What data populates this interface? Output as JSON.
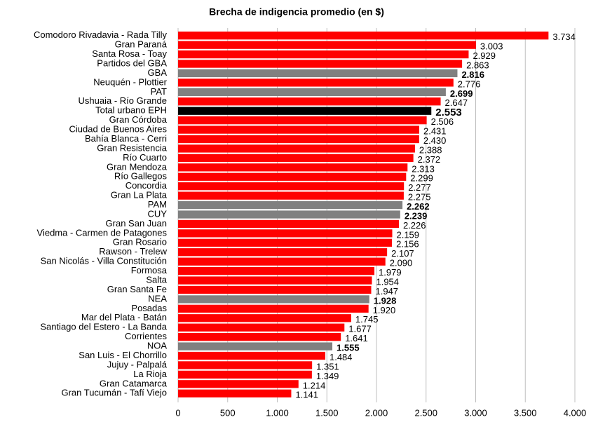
{
  "chart_data": {
    "type": "bar",
    "orientation": "horizontal",
    "title": "Brecha de indigencia promedio (en $)",
    "categories": [
      "Comodoro Rivadavia - Rada Tilly",
      "Gran Paraná",
      "Santa Rosa - Toay",
      "Partidos del GBA",
      "GBA",
      "Neuquén - Plottier",
      "PAT",
      "Ushuaia - Río Grande",
      "Total urbano EPH",
      "Gran Córdoba",
      "Ciudad de Buenos Aires",
      "Bahía Blanca - Cerri",
      "Gran Resistencia",
      "Río Cuarto",
      "Gran Mendoza",
      "Río Gallegos",
      "Concordia",
      "Gran La Plata",
      "PAM",
      "CUY",
      "Gran San Juan",
      "Viedma - Carmen de Patagones",
      "Gran Rosario",
      "Rawson - Trelew",
      "San Nicolás - Villa Constitución",
      "Formosa",
      "Salta",
      "Gran Santa Fe",
      "NEA",
      "Posadas",
      "Mar del Plata - Batán",
      "Santiago del Estero - La Banda",
      "Corrientes",
      "NOA",
      "San Luis - El Chorrillo",
      "Jujuy - Palpalá",
      "La Rioja",
      "Gran Catamarca",
      "Gran Tucumán - Tafí Viejo"
    ],
    "values": [
      3734,
      3003,
      2929,
      2863,
      2816,
      2776,
      2699,
      2647,
      2553,
      2506,
      2431,
      2430,
      2388,
      2372,
      2313,
      2299,
      2277,
      2275,
      2262,
      2239,
      2226,
      2159,
      2156,
      2107,
      2090,
      1979,
      1954,
      1947,
      1928,
      1920,
      1745,
      1677,
      1641,
      1555,
      1484,
      1351,
      1349,
      1214,
      1141
    ],
    "value_labels": [
      "3.734",
      "3.003",
      "2.929",
      "2.863",
      "2.816",
      "2.776",
      "2.699",
      "2.647",
      "2.553",
      "2.506",
      "2.431",
      "2.430",
      "2.388",
      "2.372",
      "2.313",
      "2.299",
      "2.277",
      "2.275",
      "2.262",
      "2.239",
      "2.226",
      "2.159",
      "2.156",
      "2.107",
      "2.090",
      "1.979",
      "1.954",
      "1.947",
      "1.928",
      "1.920",
      "1.745",
      "1.677",
      "1.641",
      "1.555",
      "1.484",
      "1.351",
      "1.349",
      "1.214",
      "1.141"
    ],
    "colors": [
      "#ff0000",
      "#ff0000",
      "#ff0000",
      "#ff0000",
      "#808080",
      "#ff0000",
      "#808080",
      "#ff0000",
      "#000000",
      "#ff0000",
      "#ff0000",
      "#ff0000",
      "#ff0000",
      "#ff0000",
      "#ff0000",
      "#ff0000",
      "#ff0000",
      "#ff0000",
      "#808080",
      "#808080",
      "#ff0000",
      "#ff0000",
      "#ff0000",
      "#ff0000",
      "#ff0000",
      "#ff0000",
      "#ff0000",
      "#ff0000",
      "#808080",
      "#ff0000",
      "#ff0000",
      "#ff0000",
      "#ff0000",
      "#808080",
      "#ff0000",
      "#ff0000",
      "#ff0000",
      "#ff0000",
      "#ff0000"
    ],
    "xlim": [
      0,
      4000
    ],
    "xticks": [
      0,
      500,
      {
        "value": 1000,
        "label": "1.000"
      },
      {
        "value": 1500,
        "label": "1.500"
      },
      {
        "value": 2000,
        "label": "2.000"
      },
      {
        "value": 2500,
        "label": "2.500"
      },
      {
        "value": 3000,
        "label": "3.000"
      },
      {
        "value": 3500,
        "label": "3.500"
      },
      {
        "value": 4000,
        "label": "4.000"
      }
    ],
    "grid": true
  }
}
